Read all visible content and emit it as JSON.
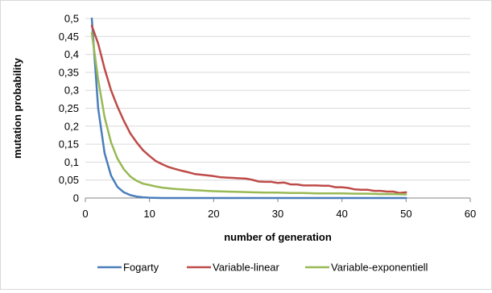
{
  "chart_data": {
    "type": "line",
    "title": "",
    "xlabel": "number of generation",
    "ylabel": "mutation probability",
    "xlim": [
      0,
      60
    ],
    "ylim": [
      0,
      0.5
    ],
    "x_ticks": [
      "0",
      "10",
      "20",
      "30",
      "40",
      "50",
      "60"
    ],
    "y_ticks": [
      "0",
      "0,05",
      "0,1",
      "0,15",
      "0,2",
      "0,25",
      "0,3",
      "0,35",
      "0,4",
      "0,45",
      "0,5"
    ],
    "grid": true,
    "legend_position": "bottom",
    "series": [
      {
        "name": "Fogarty",
        "color": "#4a7ebb",
        "x": [
          1,
          2,
          3,
          4,
          5,
          6,
          7,
          8,
          9,
          10,
          12,
          15,
          20,
          25,
          30,
          35,
          40,
          45,
          50
        ],
        "y": [
          0.5,
          0.25,
          0.125,
          0.0625,
          0.031,
          0.016,
          0.008,
          0.004,
          0.002,
          0.001,
          0.0,
          0.0,
          0.0,
          0.0,
          0.0,
          0.0,
          0.0,
          0.0,
          0.0
        ]
      },
      {
        "name": "Variable-linear",
        "color": "#be4b48",
        "x": [
          1,
          2,
          3,
          4,
          5,
          6,
          7,
          8,
          9,
          10,
          11,
          12,
          13,
          14,
          15,
          16,
          17,
          18,
          19,
          20,
          21,
          22,
          23,
          24,
          25,
          26,
          27,
          28,
          29,
          30,
          31,
          32,
          33,
          34,
          35,
          36,
          37,
          38,
          39,
          40,
          41,
          42,
          43,
          44,
          45,
          46,
          47,
          48,
          49,
          50
        ],
        "y": [
          0.48,
          0.43,
          0.36,
          0.3,
          0.255,
          0.215,
          0.18,
          0.155,
          0.133,
          0.117,
          0.103,
          0.094,
          0.086,
          0.081,
          0.076,
          0.072,
          0.067,
          0.065,
          0.063,
          0.061,
          0.058,
          0.057,
          0.056,
          0.055,
          0.054,
          0.051,
          0.046,
          0.045,
          0.045,
          0.042,
          0.043,
          0.038,
          0.038,
          0.035,
          0.035,
          0.035,
          0.034,
          0.034,
          0.03,
          0.03,
          0.028,
          0.024,
          0.023,
          0.023,
          0.02,
          0.02,
          0.018,
          0.018,
          0.014,
          0.016
        ]
      },
      {
        "name": "Variable-exponentiell",
        "color": "#98b954",
        "x": [
          1,
          2,
          3,
          4,
          5,
          6,
          7,
          8,
          9,
          10,
          11,
          12,
          13,
          14,
          15,
          16,
          17,
          18,
          19,
          20,
          22,
          24,
          26,
          28,
          30,
          32,
          34,
          36,
          38,
          40,
          42,
          44,
          46,
          48,
          50
        ],
        "y": [
          0.46,
          0.33,
          0.225,
          0.155,
          0.11,
          0.08,
          0.06,
          0.048,
          0.04,
          0.036,
          0.032,
          0.029,
          0.027,
          0.025,
          0.024,
          0.023,
          0.022,
          0.021,
          0.02,
          0.019,
          0.018,
          0.017,
          0.016,
          0.015,
          0.015,
          0.014,
          0.014,
          0.013,
          0.013,
          0.013,
          0.012,
          0.012,
          0.011,
          0.011,
          0.01
        ]
      }
    ]
  }
}
